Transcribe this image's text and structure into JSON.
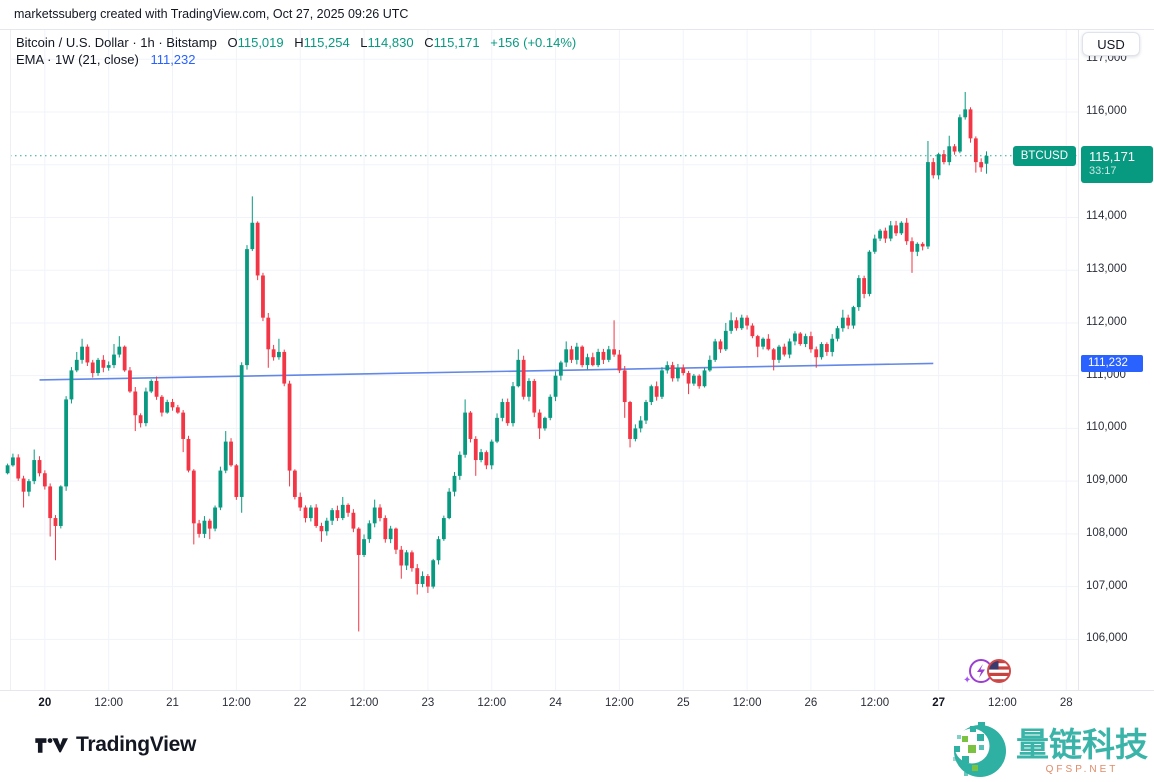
{
  "header": {
    "attribution": "marketssuberg created with TradingView.com, Oct 27, 2025 09:26 UTC"
  },
  "legend": {
    "symbol_row": {
      "title": "Bitcoin / U.S. Dollar · 1h · Bitstamp",
      "o_label": "O",
      "o_value": "115,019",
      "h_label": "H",
      "h_value": "115,254",
      "l_label": "L",
      "l_value": "114,830",
      "c_label": "C",
      "c_value": "115,171",
      "change": "+156 (+0.14%)"
    },
    "ema_row": {
      "title": "EMA · 1W (21, close)",
      "value": "111,232"
    }
  },
  "price_axis": {
    "currency_button": "USD",
    "tick_values": [
      117000,
      116000,
      115000,
      114000,
      113000,
      112000,
      111000,
      110000,
      109000,
      108000,
      107000,
      106000
    ],
    "price_tag": {
      "symbol": "BTCUSD",
      "price": "115,171",
      "countdown": "33:17"
    },
    "ema_tag": "111,232"
  },
  "time_axis": {
    "labels": [
      {
        "text": "20",
        "hour": 7,
        "bold": true
      },
      {
        "text": "12:00",
        "hour": 19
      },
      {
        "text": "21",
        "hour": 31
      },
      {
        "text": "12:00",
        "hour": 43
      },
      {
        "text": "22",
        "hour": 55
      },
      {
        "text": "12:00",
        "hour": 67
      },
      {
        "text": "23",
        "hour": 79
      },
      {
        "text": "12:00",
        "hour": 91
      },
      {
        "text": "24",
        "hour": 103
      },
      {
        "text": "12:00",
        "hour": 115
      },
      {
        "text": "25",
        "hour": 127
      },
      {
        "text": "12:00",
        "hour": 139
      },
      {
        "text": "26",
        "hour": 151
      },
      {
        "text": "12:00",
        "hour": 163
      },
      {
        "text": "27",
        "hour": 175,
        "bold": true
      },
      {
        "text": "12:00",
        "hour": 187
      },
      {
        "text": "28",
        "hour": 199
      }
    ]
  },
  "event_marker": {
    "icons": [
      "economic-event-icon",
      "us-flag-icon"
    ]
  },
  "footer": {
    "brand": "TradingView"
  },
  "watermark": {
    "brand": "量链科技",
    "domain": "QFSP.NET"
  },
  "colors": {
    "up": "#089981",
    "down": "#f23645",
    "grid": "#f0f3fa",
    "ema_line": "#5b82e6",
    "ema_label_bg": "#2962ff",
    "price_tag_bg": "#089981",
    "axis_text": "#2a2e39",
    "watermark_teal": "#3ab4a8",
    "watermark_green": "#7cc242"
  },
  "chart_data": {
    "type": "candlestick",
    "title": "Bitcoin / U.S. Dollar",
    "exchange": "Bitstamp",
    "interval": "1h",
    "start_time": "Oct 19 2025 17:00 UTC",
    "end_time": "Oct 27 2025 09:00 UTC",
    "ylim": [
      105600,
      117400
    ],
    "last_ohlc": {
      "open": 115019,
      "high": 115254,
      "low": 114830,
      "close": 115171,
      "change": 156,
      "change_pct": 0.14
    },
    "price_line": 115171,
    "ema": {
      "name": "EMA 21 (1W, close)",
      "from_index": 6,
      "from_price": 110920,
      "to_index": 174,
      "to_price": 111232
    },
    "closes": [
      109300,
      109450,
      109050,
      108800,
      109000,
      109400,
      109150,
      108900,
      108300,
      108150,
      108900,
      110550,
      111100,
      111300,
      111550,
      111250,
      111050,
      111300,
      111150,
      111200,
      111400,
      111550,
      111100,
      110700,
      110250,
      110100,
      110700,
      110900,
      110600,
      110300,
      110500,
      110400,
      110300,
      109800,
      109200,
      108200,
      108000,
      108250,
      108100,
      108500,
      109200,
      109750,
      109300,
      108700,
      111200,
      113400,
      113900,
      112900,
      112100,
      111500,
      111350,
      111450,
      110850,
      109200,
      108700,
      108500,
      108300,
      108500,
      108150,
      108050,
      108250,
      108450,
      108300,
      108550,
      108400,
      108100,
      107600,
      107900,
      108200,
      108500,
      108300,
      107900,
      108100,
      107700,
      107400,
      107650,
      107350,
      107050,
      107200,
      107000,
      107500,
      107900,
      108300,
      108800,
      109100,
      109500,
      110300,
      109800,
      109400,
      109550,
      109300,
      109750,
      110200,
      110500,
      110100,
      110800,
      111300,
      110600,
      110900,
      110300,
      110000,
      110200,
      110600,
      111000,
      111250,
      111500,
      111300,
      111550,
      111200,
      111350,
      111200,
      111450,
      111300,
      111500,
      111400,
      111100,
      110500,
      109800,
      110000,
      110150,
      110500,
      110800,
      110600,
      111100,
      111200,
      110950,
      111150,
      111050,
      110850,
      111000,
      110800,
      111100,
      111300,
      111650,
      111500,
      111850,
      112050,
      111900,
      112100,
      111950,
      111750,
      111550,
      111700,
      111500,
      111300,
      111550,
      111400,
      111650,
      111800,
      111600,
      111750,
      111500,
      111350,
      111600,
      111450,
      111700,
      111900,
      112100,
      111950,
      112300,
      112850,
      112550,
      113350,
      113600,
      113750,
      113600,
      113850,
      113700,
      113900,
      113550,
      113350,
      113500,
      113450,
      115050,
      114800,
      115200,
      115050,
      115350,
      115250,
      115900,
      116050,
      115500,
      115050,
      114950,
      115171
    ],
    "wick_overrides": {
      "3": {
        "low": 108500
      },
      "5": {
        "high": 109600
      },
      "8": {
        "low": 107950
      },
      "9": {
        "low": 107500
      },
      "13": {
        "high": 111450
      },
      "14": {
        "high": 111700
      },
      "20": {
        "high": 111600
      },
      "21": {
        "high": 111750
      },
      "24": {
        "low": 109950
      },
      "33": {
        "low": 109550
      },
      "35": {
        "low": 107800
      },
      "38": {
        "low": 107900
      },
      "41": {
        "high": 109950
      },
      "44": {
        "low": 108400
      },
      "46": {
        "high": 114400
      },
      "49": {
        "low": 111150
      },
      "51": {
        "high": 111700
      },
      "53": {
        "low": 108900
      },
      "59": {
        "low": 107850
      },
      "63": {
        "high": 108700
      },
      "66": {
        "low": 106150
      },
      "69": {
        "high": 108650
      },
      "74": {
        "low": 107150
      },
      "77": {
        "low": 106850
      },
      "79": {
        "low": 106880
      },
      "86": {
        "high": 110550
      },
      "88": {
        "low": 109100
      },
      "96": {
        "high": 111500
      },
      "100": {
        "low": 109800
      },
      "105": {
        "high": 111650
      },
      "114": {
        "high": 112050
      },
      "116": {
        "low": 110200
      },
      "117": {
        "low": 109640
      },
      "128": {
        "low": 110650
      },
      "135": {
        "high": 112000
      },
      "136": {
        "high": 112200
      },
      "141": {
        "low": 111350
      },
      "144": {
        "low": 111100
      },
      "152": {
        "low": 111150
      },
      "157": {
        "high": 112250
      },
      "170": {
        "low": 112950
      },
      "173": {
        "high": 115450
      },
      "177": {
        "high": 115550
      },
      "180": {
        "high": 116380
      },
      "182": {
        "low": 114850
      },
      "184": {
        "open": 115019,
        "high": 115254,
        "low": 114830
      }
    }
  }
}
